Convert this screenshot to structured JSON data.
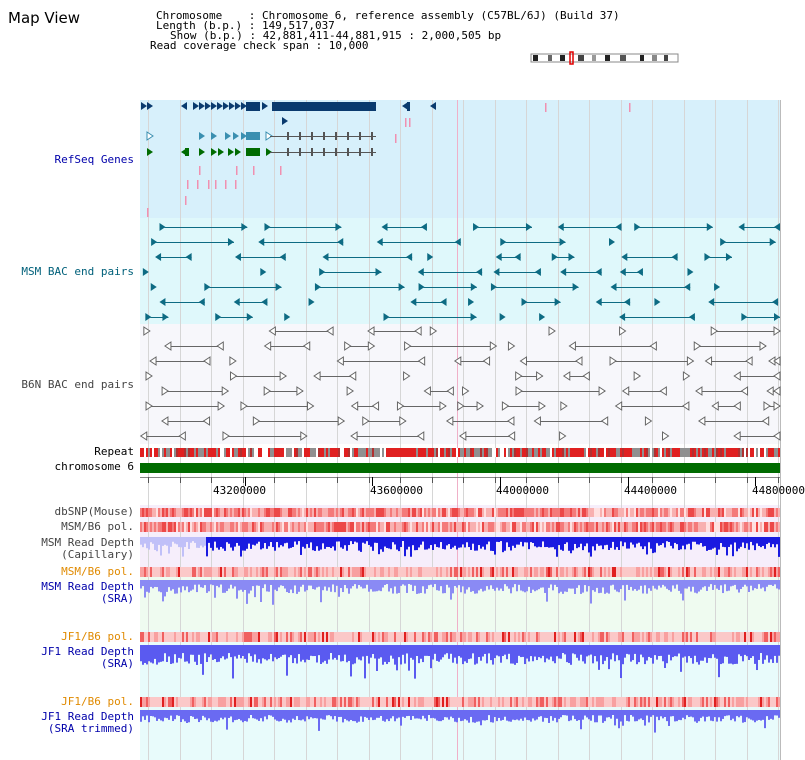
{
  "app": {
    "title": "Map View"
  },
  "header": {
    "line1": "Chromosome    : Chromosome 6, reference assembly (C57BL/6J) (Build 37)",
    "line2": "Length (b.p.) : 149,517,037",
    "line3": "Show (b.p.) : 42,881,411-44,881,915 : 2,000,505 bp",
    "line4": "Read coverage check span : 10,000"
  },
  "tracks": {
    "refseq": "RefSeq Genes",
    "msm_bac": "MSM BAC end pairs",
    "b6n_bac": "B6N BAC end pairs",
    "repeat": "Repeat",
    "chromosome": "chromosome 6",
    "dbsnp": "dbSNP(Mouse)",
    "msm_pol_1": "MSM/B6 pol.",
    "msm_depth_cap_1": "MSM Read Depth",
    "msm_depth_cap_2": "(Capillary)",
    "msm_pol_2": "MSM/B6 pol.",
    "msm_depth_sra_1": "MSM Read Depth",
    "msm_depth_sra_2": "(SRA)",
    "jf1_pol_1": "JF1/B6 pol.",
    "jf1_depth_sra_1": "JF1 Read Depth",
    "jf1_depth_sra_2": "(SRA)",
    "jf1_pol_2": "JF1/B6 pol.",
    "jf1_depth_trim_1": "JF1 Read Depth",
    "jf1_depth_trim_2": "(SRA trimmed)"
  },
  "axis": {
    "ticks": [
      "43200000",
      "43600000",
      "44000000",
      "44400000",
      "44800000"
    ],
    "range": [
      42881411,
      44881915
    ]
  },
  "colors": {
    "refseq_bg": "#d7f0fb",
    "msm_bg": "#dff8fb",
    "b6n_bg": "#f7f7fb",
    "chrom": "#006b00",
    "gene_blue": "#0a3a6e",
    "gene_green": "#006b00",
    "msm_feature": "#0d6b83",
    "b6n_feature": "#666666",
    "repeat_red": "#e02020",
    "depth_blue": "#1a1ae0",
    "depth_light": "#8080f0",
    "pol_red": "#f05050"
  },
  "icons": {
    "ideogram": "chromosome-ideogram"
  }
}
